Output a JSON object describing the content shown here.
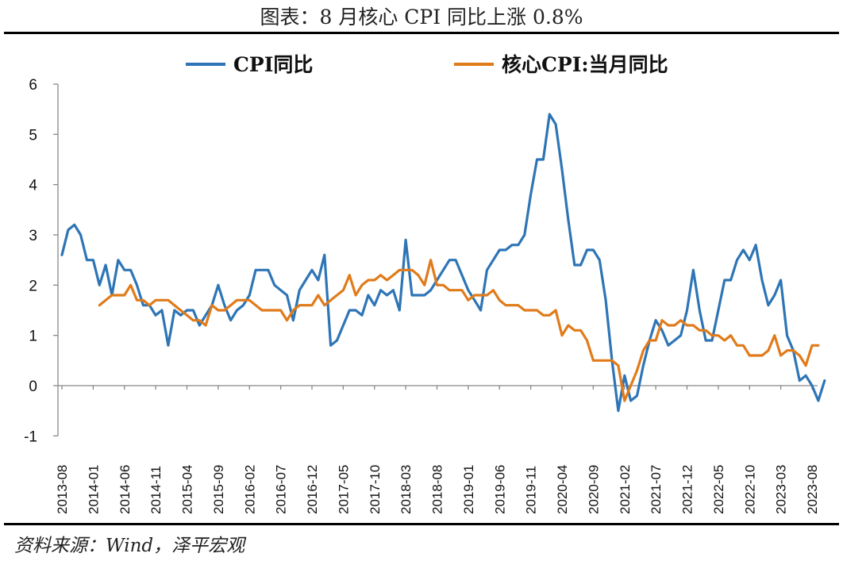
{
  "header": {
    "title": "图表：8 月核心 CPI 同比上涨 0.8%"
  },
  "footer": {
    "source": "资料来源：Wind，泽平宏观"
  },
  "chart_data": {
    "type": "line",
    "x_start": "2013-08",
    "x_end": "2023-08",
    "x_tick_labels": [
      "2013-08",
      "2014-01",
      "2014-06",
      "2014-11",
      "2015-04",
      "2015-09",
      "2016-02",
      "2016-07",
      "2016-12",
      "2017-05",
      "2017-10",
      "2018-03",
      "2018-08",
      "2019-01",
      "2019-06",
      "2019-11",
      "2020-04",
      "2020-09",
      "2021-02",
      "2021-07",
      "2021-12",
      "2022-05",
      "2022-10",
      "2023-03",
      "2023-08"
    ],
    "y_ticks": [
      6,
      5,
      4,
      3,
      2,
      1,
      0,
      -1
    ],
    "ylim": [
      -1,
      6
    ],
    "legend_position": "top",
    "series": [
      {
        "name": "CPI同比",
        "color": "#2E75B6",
        "values": [
          2.6,
          3.1,
          3.2,
          3.0,
          2.5,
          2.5,
          2.0,
          2.4,
          1.8,
          2.5,
          2.3,
          2.3,
          2.0,
          1.6,
          1.6,
          1.4,
          1.5,
          0.8,
          1.5,
          1.4,
          1.5,
          1.5,
          1.2,
          1.4,
          1.6,
          2.0,
          1.6,
          1.3,
          1.5,
          1.6,
          1.8,
          2.3,
          2.3,
          2.3,
          2.0,
          1.9,
          1.8,
          1.3,
          1.9,
          2.1,
          2.3,
          2.1,
          2.6,
          0.8,
          0.9,
          1.2,
          1.5,
          1.5,
          1.4,
          1.8,
          1.6,
          1.9,
          1.8,
          1.9,
          1.5,
          2.9,
          1.8,
          1.8,
          1.8,
          1.9,
          2.1,
          2.3,
          2.5,
          2.5,
          2.2,
          1.9,
          1.7,
          1.5,
          2.3,
          2.5,
          2.7,
          2.7,
          2.8,
          2.8,
          3.0,
          3.8,
          4.5,
          4.5,
          5.4,
          5.2,
          4.3,
          3.3,
          2.4,
          2.4,
          2.7,
          2.7,
          2.5,
          1.7,
          0.5,
          -0.5,
          0.2,
          -0.3,
          -0.2,
          0.4,
          0.9,
          1.3,
          1.1,
          0.8,
          0.9,
          1.0,
          1.5,
          2.3,
          1.5,
          0.9,
          0.9,
          1.5,
          2.1,
          2.1,
          2.5,
          2.7,
          2.5,
          2.8,
          2.1,
          1.6,
          1.8,
          2.1,
          1.0,
          0.7,
          0.1,
          0.2,
          0.0,
          -0.3,
          0.1
        ],
        "first_label": "2013-08"
      },
      {
        "name": "核心CPI:当月同比",
        "color": "#E07B1A",
        "values": [
          1.6,
          1.7,
          1.8,
          1.8,
          1.8,
          2.0,
          1.7,
          1.7,
          1.6,
          1.7,
          1.7,
          1.7,
          1.6,
          1.5,
          1.4,
          1.3,
          1.3,
          1.2,
          1.6,
          1.5,
          1.5,
          1.6,
          1.7,
          1.7,
          1.7,
          1.6,
          1.5,
          1.5,
          1.5,
          1.5,
          1.3,
          1.5,
          1.6,
          1.6,
          1.6,
          1.8,
          1.6,
          1.7,
          1.8,
          1.9,
          2.2,
          1.8,
          2.0,
          2.1,
          2.1,
          2.2,
          2.1,
          2.2,
          2.3,
          2.3,
          2.3,
          2.2,
          2.0,
          2.5,
          2.0,
          2.0,
          1.9,
          1.9,
          1.9,
          1.7,
          1.8,
          1.8,
          1.8,
          1.9,
          1.7,
          1.6,
          1.6,
          1.6,
          1.5,
          1.5,
          1.5,
          1.4,
          1.4,
          1.5,
          1.0,
          1.2,
          1.1,
          1.1,
          0.9,
          0.5,
          0.5,
          0.5,
          0.5,
          0.4,
          -0.3,
          0.0,
          0.3,
          0.7,
          0.9,
          0.9,
          1.3,
          1.2,
          1.2,
          1.3,
          1.2,
          1.2,
          1.1,
          1.1,
          1.0,
          1.0,
          0.9,
          1.0,
          0.8,
          0.8,
          0.6,
          0.6,
          0.6,
          0.7,
          1.0,
          0.6,
          0.7,
          0.7,
          0.6,
          0.4,
          0.8,
          0.8
        ],
        "first_label": "2014-02"
      }
    ]
  }
}
